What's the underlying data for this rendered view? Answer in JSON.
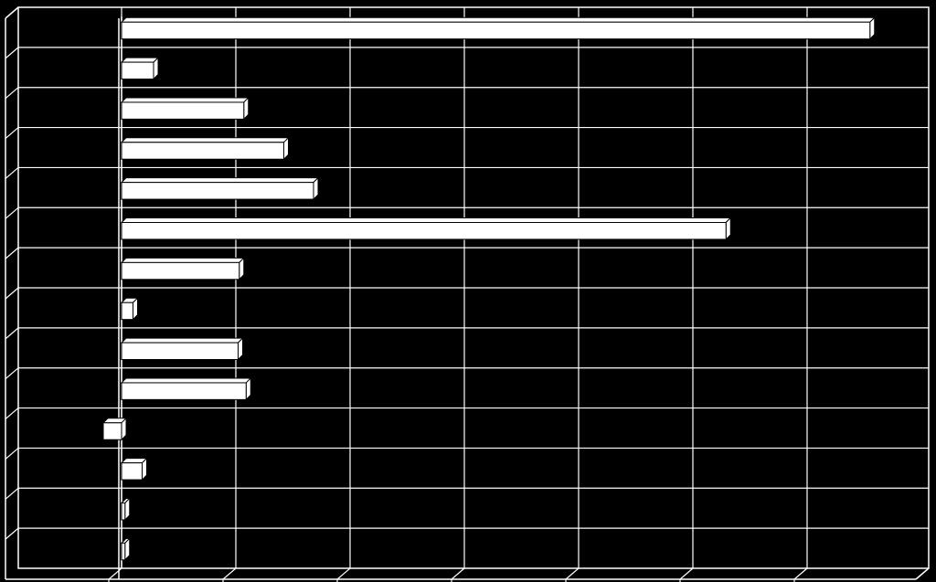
{
  "chart_data": {
    "type": "bar",
    "orientation": "horizontal",
    "style": "3d",
    "title": "",
    "xlabel": "",
    "ylabel": "",
    "grid": true,
    "legend": "none",
    "xlim": [
      -1,
      6.5
    ],
    "categories": [
      "",
      "",
      "",
      "",
      "",
      "",
      "",
      "",
      "",
      "",
      "",
      "",
      "",
      ""
    ],
    "values": [
      6.55,
      0.28,
      1.07,
      1.42,
      1.68,
      5.29,
      1.03,
      0.1,
      1.02,
      1.09,
      -0.16,
      0.18,
      0.03,
      0.03
    ]
  },
  "colors": {
    "background": "#000000",
    "bar_fill": "#ffffff",
    "bar_edge": "#000000",
    "grid": "#ffffff"
  }
}
